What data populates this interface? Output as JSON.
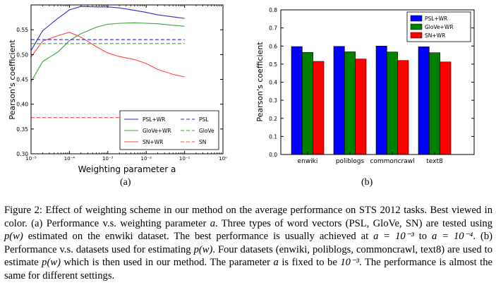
{
  "figure": {
    "sub_a": "(a)",
    "sub_b": "(b)",
    "caption": [
      {
        "t": "Figure 2: Effect of weighting scheme in our method on the average performance on STS 2012 tasks. Best viewed in color. (a) Performance v.s. weighting parameter "
      },
      {
        "t": "a",
        "math": true
      },
      {
        "t": ". Three types of word vectors (PSL, GloVe, SN) are tested using "
      },
      {
        "t": "p(w)",
        "math": true
      },
      {
        "t": " estimated on the enwiki dataset. The best performance is usually achieved at "
      },
      {
        "t": "a = 10⁻³",
        "math": true
      },
      {
        "t": " to "
      },
      {
        "t": "a = 10⁻⁴",
        "math": true
      },
      {
        "t": ". (b) Performance v.s. datasets used for estimating "
      },
      {
        "t": "p(w)",
        "math": true
      },
      {
        "t": ". Four datasets (enwiki, poliblogs, commoncrawl, text8) are used to estimate "
      },
      {
        "t": "p(w)",
        "math": true
      },
      {
        "t": " which is then used in our method. The parameter "
      },
      {
        "t": "a",
        "math": true
      },
      {
        "t": " is fixed to be "
      },
      {
        "t": "10⁻³",
        "math": true
      },
      {
        "t": ". The performance is almost the same for different settings."
      }
    ]
  },
  "chart_data": [
    {
      "type": "line",
      "xlabel": "Weighting parameter a",
      "ylabel": "Pearson's coefficient",
      "xscale": "log",
      "xlim_exp": [
        -5,
        0
      ],
      "xtick_labels": [
        "10⁻⁵",
        "10⁻⁴",
        "10⁻³",
        "10⁻²",
        "10⁻¹",
        "10⁰"
      ],
      "ylim": [
        0.3,
        0.6
      ],
      "ytick_labels": [
        "0.30",
        "0.35",
        "0.40",
        "0.45",
        "0.50",
        "0.55"
      ],
      "ytick_values": [
        0.3,
        0.35,
        0.4,
        0.45,
        0.5,
        0.55
      ],
      "legend": "bottom-right",
      "x": [
        1e-05,
        2e-05,
        5e-05,
        0.0001,
        0.0002,
        0.0005,
        0.001,
        0.002,
        0.005,
        0.01,
        0.02,
        0.05,
        0.1
      ],
      "series": [
        {
          "name": "PSL+WR",
          "color": "#2e2ec8",
          "style": "solid",
          "values": [
            0.508,
            0.548,
            0.573,
            0.59,
            0.597,
            0.596,
            0.596,
            0.594,
            0.589,
            0.585,
            0.58,
            0.576,
            0.573
          ]
        },
        {
          "name": "GloVe+WR",
          "color": "#3aa33a",
          "style": "solid",
          "values": [
            0.445,
            0.486,
            0.505,
            0.528,
            0.542,
            0.555,
            0.561,
            0.563,
            0.564,
            0.563,
            0.562,
            0.559,
            0.557
          ]
        },
        {
          "name": "SN+WR",
          "color": "#ff4444",
          "style": "solid",
          "values": [
            0.495,
            0.527,
            0.538,
            0.545,
            0.535,
            0.516,
            0.503,
            0.496,
            0.49,
            0.482,
            0.47,
            0.46,
            0.455
          ]
        },
        {
          "name": "PSL",
          "color": "#2e2ec8",
          "style": "dashed",
          "values_const": 0.53
        },
        {
          "name": "GloVe",
          "color": "#3aa33a",
          "style": "dashed",
          "values_const": 0.522
        },
        {
          "name": "SN",
          "color": "#ff4444",
          "style": "dashed",
          "values_const": 0.373
        }
      ]
    },
    {
      "type": "bar",
      "xlabel": "",
      "ylabel": "Pearson's coefficient",
      "ylim": [
        0.0,
        0.8
      ],
      "ytick_labels": [
        "0.0",
        "0.1",
        "0.2",
        "0.3",
        "0.4",
        "0.5",
        "0.6",
        "0.7",
        "0.8"
      ],
      "ytick_values": [
        0.0,
        0.1,
        0.2,
        0.3,
        0.4,
        0.5,
        0.6,
        0.7,
        0.8
      ],
      "legend": "top-right",
      "categories": [
        "enwiki",
        "poliblogs",
        "commoncrawl",
        "text8"
      ],
      "series": [
        {
          "name": "PSL+WR",
          "color": "#0000ff",
          "values": [
            0.597,
            0.598,
            0.6,
            0.596
          ]
        },
        {
          "name": "GloVe+WR",
          "color": "#008000",
          "values": [
            0.565,
            0.568,
            0.567,
            0.563
          ]
        },
        {
          "name": "SN+WR",
          "color": "#ff0000",
          "values": [
            0.515,
            0.528,
            0.52,
            0.512
          ]
        }
      ]
    }
  ]
}
